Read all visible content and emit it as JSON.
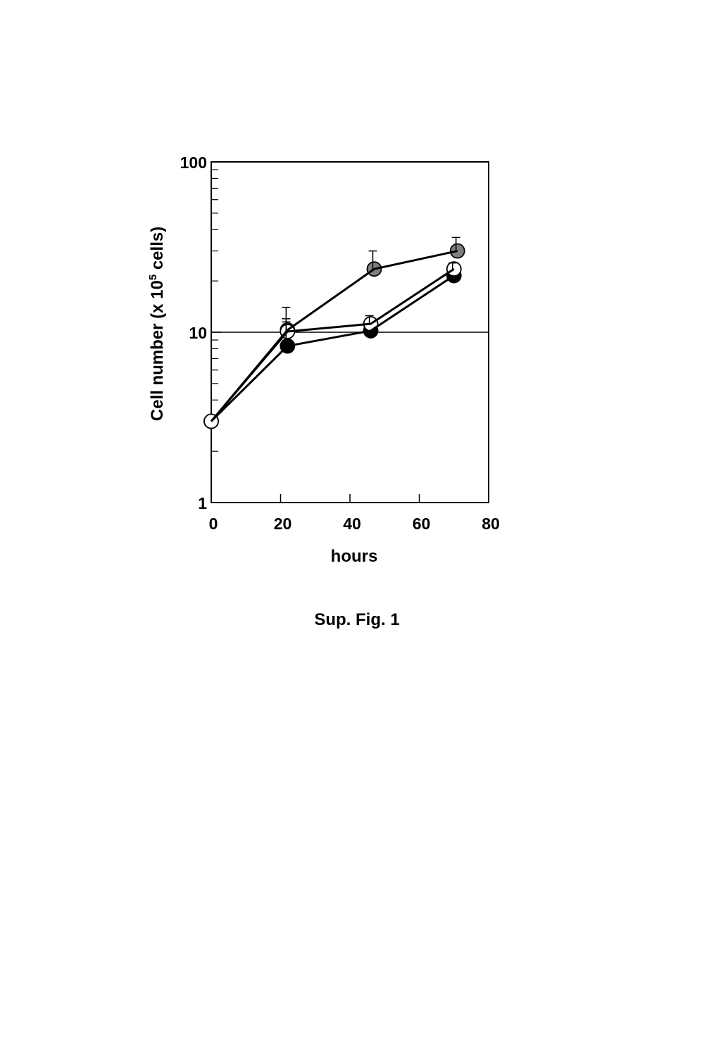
{
  "chart_data": {
    "type": "line",
    "xlabel": "hours",
    "ylabel": {
      "prefix": "Cell number  (x 10",
      "superscript": "5",
      "suffix": " cells)"
    },
    "caption": "Sup. Fig. 1",
    "xlim": [
      0,
      80
    ],
    "ylim": [
      1,
      100
    ],
    "yscale": "log",
    "xticks": [
      0,
      20,
      40,
      60,
      80
    ],
    "yticks": [
      1,
      10,
      100
    ],
    "xtick_labels": [
      "0",
      "20",
      "40",
      "60",
      "80"
    ],
    "ytick_labels": [
      "1",
      "10",
      "100"
    ],
    "reference_line_y": 10,
    "grid": false,
    "series": [
      {
        "marker": "circle-filled-gray",
        "color": "#808080",
        "x": [
          0,
          22,
          47,
          71
        ],
        "y": [
          3,
          10.3,
          23.5,
          30
        ],
        "err_upper": [
          null,
          14,
          30,
          36
        ]
      },
      {
        "marker": "circle-filled-black",
        "color": "#000000",
        "x": [
          0,
          22,
          46,
          70
        ],
        "y": [
          3,
          8.3,
          10.2,
          21.5
        ],
        "err_upper": [
          null,
          12,
          null,
          null
        ]
      },
      {
        "marker": "circle-open",
        "color": "#ffffff",
        "x": [
          0,
          22,
          46,
          70
        ],
        "y": [
          3,
          10.1,
          11.2,
          23.5
        ],
        "err_upper": [
          null,
          11.5,
          12.5,
          25.5
        ]
      }
    ]
  }
}
